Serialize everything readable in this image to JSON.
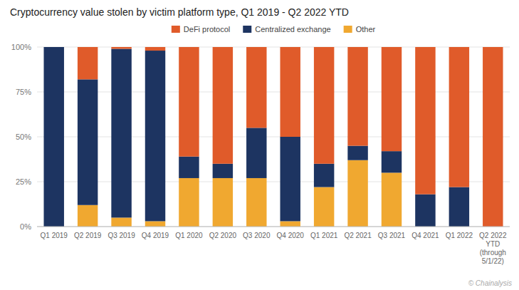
{
  "chart_data": {
    "type": "bar",
    "stacked": true,
    "title": "Cryptocurrency value stolen by victim platform type, Q1 2019 - Q2 2022 YTD",
    "categories": [
      "Q1 2019",
      "Q2 2019",
      "Q3 2019",
      "Q4 2019",
      "Q1 2020",
      "Q2 2020",
      "Q3 2020",
      "Q4 2020",
      "Q1 2021",
      "Q2 2021",
      "Q3 2021",
      "Q4 2021",
      "Q1 2022",
      "Q2 2022\nYTD\n(through\n5/1/22)"
    ],
    "series": [
      {
        "name": "Other",
        "color": "#f0a830",
        "values": [
          0,
          12,
          5,
          3,
          27,
          27,
          27,
          3,
          22,
          37,
          30,
          0,
          0,
          0
        ]
      },
      {
        "name": "Centralized exchange",
        "color": "#1d3461",
        "values": [
          100,
          70,
          94,
          95,
          12,
          8,
          28,
          47,
          13,
          8,
          12,
          18,
          22,
          0
        ]
      },
      {
        "name": "DeFi protocol",
        "color": "#e05b2a",
        "values": [
          0,
          18,
          1,
          2,
          61,
          65,
          45,
          50,
          65,
          55,
          58,
          82,
          78,
          100
        ]
      }
    ],
    "ylim": [
      0,
      100
    ],
    "yticks": [
      {
        "value": 0,
        "label": "0%"
      },
      {
        "value": 25,
        "label": "25%"
      },
      {
        "value": 50,
        "label": "50%"
      },
      {
        "value": 75,
        "label": "75%"
      },
      {
        "value": 100,
        "label": "100%"
      }
    ],
    "grid": true,
    "legend": "top",
    "annotations": [
      "© Chainalysis"
    ]
  }
}
